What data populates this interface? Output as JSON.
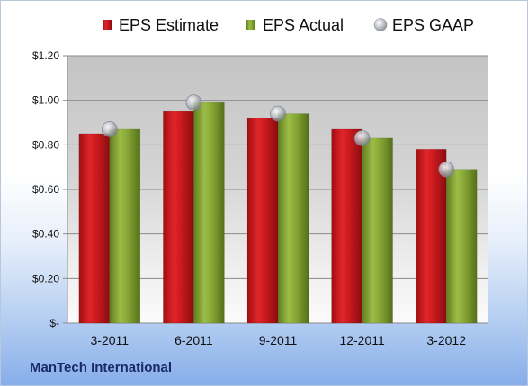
{
  "chart_data": {
    "type": "bar",
    "categories": [
      "3-2011",
      "6-2011",
      "9-2011",
      "12-2011",
      "3-2012"
    ],
    "series": [
      {
        "name": "EPS Estimate",
        "kind": "bar",
        "color": "#c0161b",
        "values": [
          0.85,
          0.95,
          0.92,
          0.87,
          0.78
        ]
      },
      {
        "name": "EPS Actual",
        "kind": "bar",
        "color": "#7f9f2f",
        "values": [
          0.87,
          0.99,
          0.94,
          0.83,
          0.69
        ]
      },
      {
        "name": "EPS GAAP",
        "kind": "marker",
        "color": "#b8bcc4",
        "values": [
          0.87,
          0.99,
          0.94,
          0.83,
          0.69
        ]
      }
    ],
    "ylim": [
      0,
      1.2
    ],
    "yticks": [
      0,
      0.2,
      0.4,
      0.6,
      0.8,
      1.0,
      1.2
    ],
    "ytick_labels": [
      "$-",
      "$0.20",
      "$0.40",
      "$0.60",
      "$0.80",
      "$1.00",
      "$1.20"
    ],
    "grid": true,
    "legend_position": "top"
  },
  "footer": {
    "company": "ManTech International"
  }
}
